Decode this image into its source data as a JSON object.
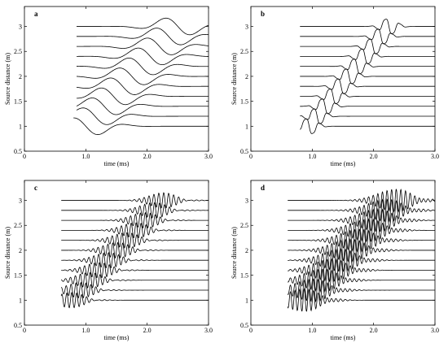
{
  "chart_data": [
    {
      "panel": "a",
      "type": "line",
      "xlabel": "time (ms)",
      "ylabel": "Source distance (m)",
      "xlim": [
        0,
        3.0
      ],
      "ylim": [
        0.5,
        3.4
      ],
      "xticks": [
        "0",
        "1.0",
        "2.0",
        "3.0"
      ],
      "yticks": [
        "0.5",
        "1",
        "1.5",
        "2",
        "2.5",
        "3"
      ],
      "series": {
        "offsets": [
          1.0,
          1.2,
          1.4,
          1.6,
          1.8,
          2.0,
          2.2,
          2.4,
          2.6,
          2.8,
          3.0
        ],
        "arrival_time_ms": [
          1.0,
          1.15,
          1.3,
          1.45,
          1.6,
          1.75,
          1.9,
          2.05,
          2.2,
          2.35,
          2.5
        ],
        "wavelet": "broad-pulse",
        "amplitude_m": 0.2,
        "period_ms": 0.35,
        "frequency_cycles": 1
      }
    },
    {
      "panel": "b",
      "type": "line",
      "xlabel": "time (ms)",
      "ylabel": "Source distance (m)",
      "xlim": [
        0,
        3.0
      ],
      "ylim": [
        0.5,
        3.4
      ],
      "xticks": [
        "0",
        "1.0",
        "2.0",
        "3.0"
      ],
      "yticks": [
        "0.5",
        "1",
        "1.5",
        "2",
        "2.5",
        "3"
      ],
      "series": {
        "offsets": [
          1.0,
          1.2,
          1.4,
          1.6,
          1.8,
          2.0,
          2.2,
          2.4,
          2.6,
          2.8,
          3.0
        ],
        "arrival_time_ms": [
          0.95,
          1.08,
          1.21,
          1.34,
          1.47,
          1.6,
          1.73,
          1.86,
          1.99,
          2.12,
          2.25
        ],
        "wavelet": "sharp-pulse",
        "amplitude_m": 0.2,
        "period_ms": 0.12,
        "frequency_cycles": 2
      }
    },
    {
      "panel": "c",
      "type": "line",
      "xlabel": "time (ms)",
      "ylabel": "Source distance (m)",
      "xlim": [
        0,
        3.0
      ],
      "ylim": [
        0.5,
        3.4
      ],
      "xticks": [
        "0",
        "1.0",
        "2.0",
        "3.0"
      ],
      "yticks": [
        "0.5",
        "1",
        "1.5",
        "2",
        "2.5",
        "3"
      ],
      "series": {
        "offsets": [
          1.0,
          1.2,
          1.4,
          1.6,
          1.8,
          2.0,
          2.2,
          2.4,
          2.6,
          2.8,
          3.0
        ],
        "arrival_time_ms": [
          0.75,
          0.9,
          1.05,
          1.2,
          1.35,
          1.5,
          1.65,
          1.8,
          1.95,
          2.1,
          2.25
        ],
        "wavelet": "burst",
        "amplitude_m": 0.15,
        "period_ms": 0.08,
        "frequency_cycles": 5
      }
    },
    {
      "panel": "d",
      "type": "line",
      "xlabel": "time (ms)",
      "ylabel": "Source distance (m)",
      "xlim": [
        0,
        3.0
      ],
      "ylim": [
        0.5,
        3.4
      ],
      "xticks": [
        "0",
        "1.0",
        "2.0",
        "3.0"
      ],
      "yticks": [
        "0.5",
        "1",
        "1.5",
        "2",
        "2.5",
        "3"
      ],
      "series": {
        "offsets": [
          1.0,
          1.2,
          1.4,
          1.6,
          1.8,
          2.0,
          2.2,
          2.4,
          2.6,
          2.8,
          3.0
        ],
        "arrival_time_ms": [
          0.85,
          1.0,
          1.15,
          1.3,
          1.45,
          1.6,
          1.75,
          1.9,
          2.05,
          2.2,
          2.35
        ],
        "wavelet": "burst",
        "amplitude_m": 0.22,
        "period_ms": 0.075,
        "frequency_cycles": 7
      }
    }
  ]
}
